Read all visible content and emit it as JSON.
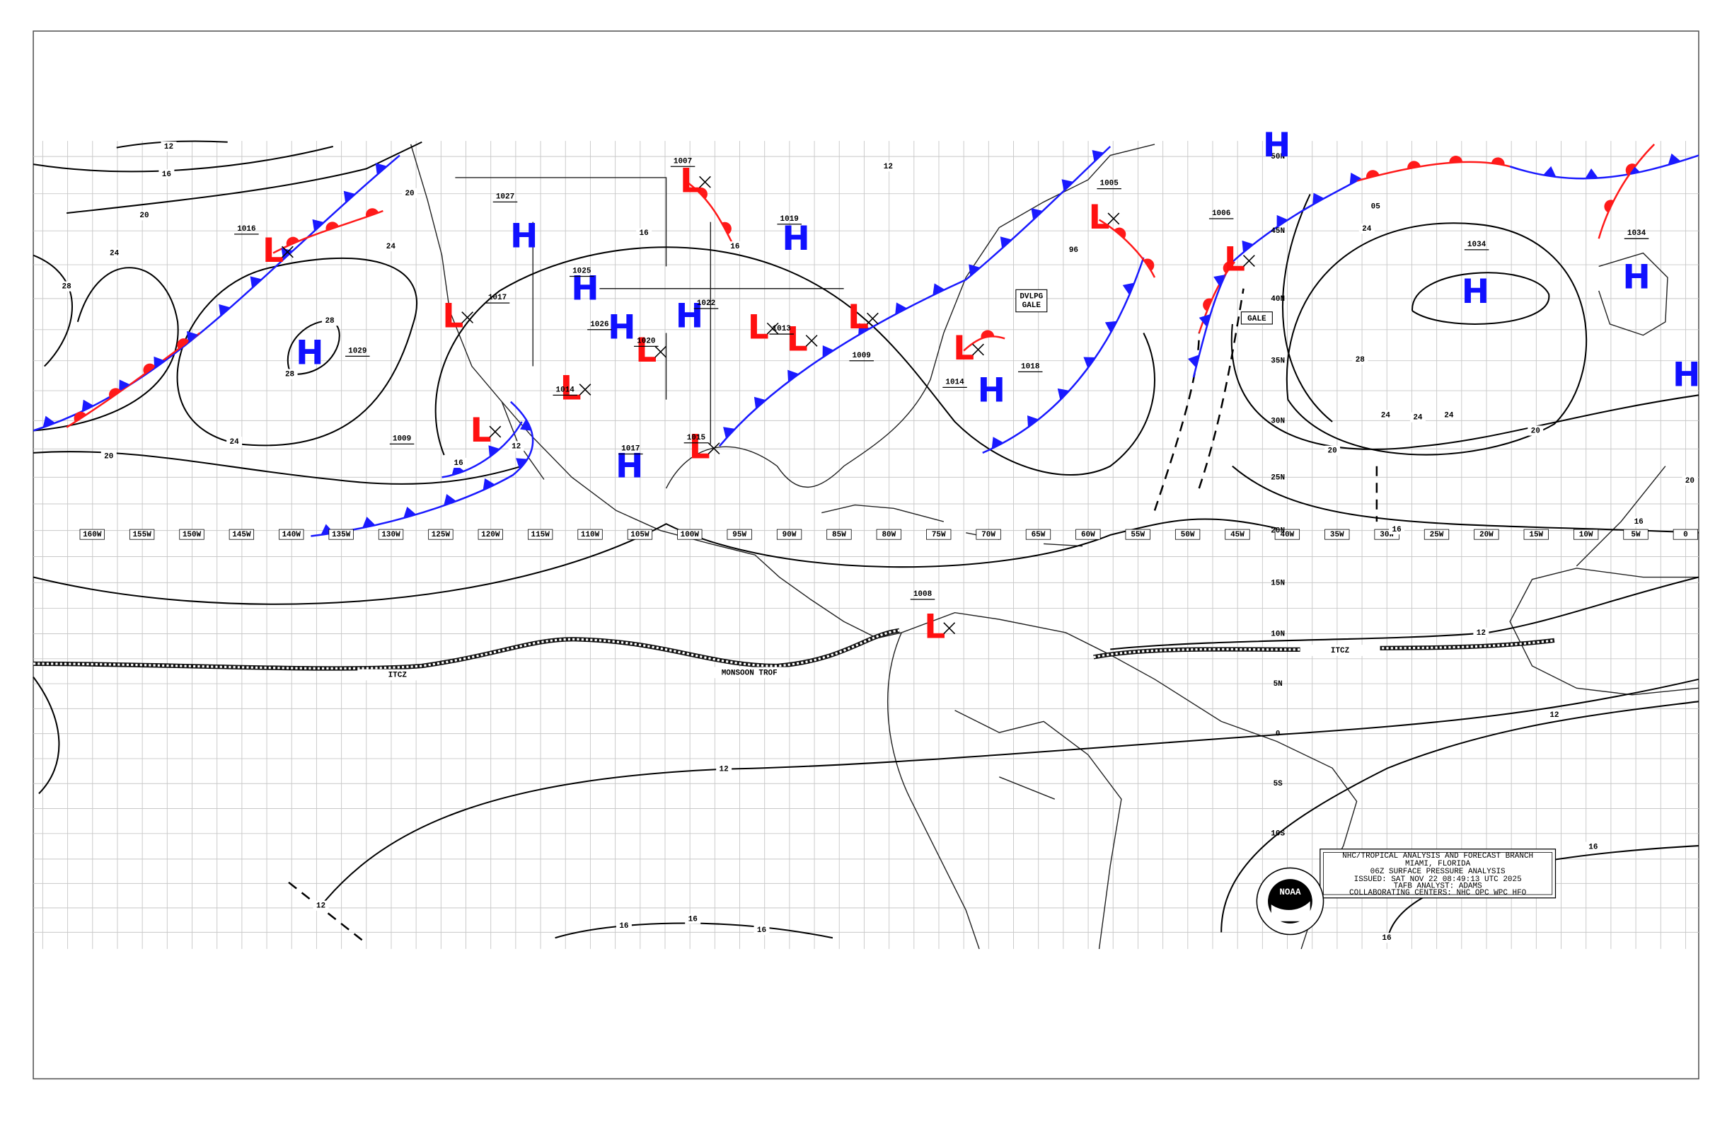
{
  "info_box": {
    "lines": [
      "NHC/TROPICAL ANALYSIS AND FORECAST BRANCH",
      "MIAMI, FLORIDA",
      "06Z SURFACE PRESSURE ANALYSIS",
      "ISSUED: SAT NOV 22 08:49:13 UTC 2025",
      "TAFB ANALYST: ADAMS",
      "COLLABORATING CENTERS: NHC OPC WPC HFO"
    ]
  },
  "logo": {
    "text": "NOAA"
  },
  "longitudes": [
    "160W",
    "155W",
    "150W",
    "145W",
    "140W",
    "135W",
    "130W",
    "125W",
    "120W",
    "115W",
    "110W",
    "105W",
    "100W",
    "95W",
    "90W",
    "85W",
    "80W",
    "75W",
    "70W",
    "65W",
    "60W",
    "55W",
    "50W",
    "45W",
    "40W",
    "35W",
    "30W",
    "25W",
    "20W",
    "15W",
    "10W",
    "5W",
    "0"
  ],
  "latitudes": [
    "50N",
    "45N",
    "40N",
    "35N",
    "30N",
    "25N",
    "20N",
    "15N",
    "10N",
    "5N",
    "0",
    "5S",
    "10S"
  ],
  "pressure_centers": [
    {
      "letter": "L",
      "pressure": 1016
    },
    {
      "letter": "H",
      "pressure": 1029
    },
    {
      "letter": "L",
      "pressure": 1017
    },
    {
      "letter": "L",
      "pressure": 1009
    },
    {
      "letter": "H",
      "pressure": 1027
    },
    {
      "letter": "H",
      "pressure": 1025
    },
    {
      "letter": "H",
      "pressure": 1026
    },
    {
      "letter": "L",
      "pressure": 1020
    },
    {
      "letter": "H",
      "pressure": 1022
    },
    {
      "letter": "L",
      "pressure": 1014
    },
    {
      "letter": "H",
      "pressure": 1017
    },
    {
      "letter": "L",
      "pressure": 1015
    },
    {
      "letter": "L",
      "pressure": 1007
    },
    {
      "letter": "H",
      "pressure": 1019
    },
    {
      "letter": "L",
      "pressure": 1013
    },
    {
      "letter": "L",
      "pressure": 1009
    },
    {
      "letter": "L",
      "pressure": 1014
    },
    {
      "letter": "H",
      "pressure": 1018
    },
    {
      "letter": "L",
      "pressure": 1005
    },
    {
      "letter": "L",
      "pressure": 1006
    },
    {
      "letter": "H",
      "pressure": 1034
    },
    {
      "letter": "H",
      "pressure": 1034
    },
    {
      "letter": "L",
      "pressure": 1008
    },
    {
      "letter": "H"
    },
    {
      "letter": "H"
    },
    {
      "letter": "L"
    }
  ],
  "isobar_labels": [
    12,
    16,
    20,
    24,
    28,
    24,
    20,
    28,
    28,
    24,
    20,
    16,
    12,
    12,
    12,
    16,
    16,
    16,
    16,
    16,
    12,
    12,
    24,
    28,
    24,
    24,
    24,
    20,
    20,
    20,
    16,
    16,
    16,
    12,
    16,
    96,
    "05"
  ],
  "feature_labels": [
    "ITCZ",
    "MONSOON TROF",
    "ITCZ",
    "GALE",
    "DVLPG",
    "GALE"
  ]
}
